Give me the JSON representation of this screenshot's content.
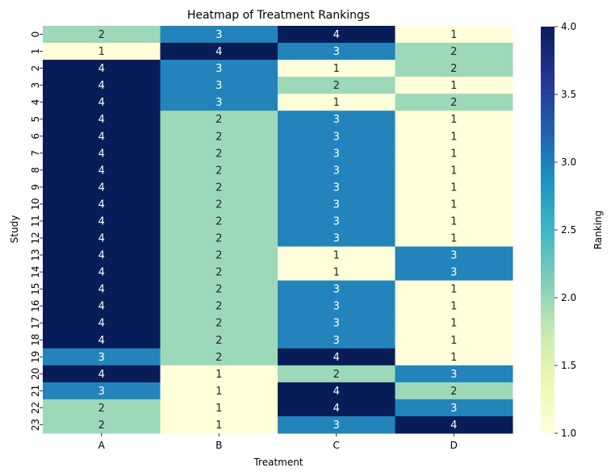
{
  "chart_data": {
    "type": "heatmap",
    "title": "Heatmap of Treatment Rankings",
    "xlabel": "Treatment",
    "ylabel": "Study",
    "x_categories": [
      "A",
      "B",
      "C",
      "D"
    ],
    "y_categories": [
      "0",
      "1",
      "2",
      "3",
      "4",
      "5",
      "6",
      "7",
      "8",
      "9",
      "10",
      "11",
      "12",
      "13",
      "14",
      "15",
      "16",
      "17",
      "18",
      "19",
      "20",
      "21",
      "22",
      "23"
    ],
    "values": [
      [
        2,
        3,
        4,
        1
      ],
      [
        1,
        4,
        3,
        2
      ],
      [
        4,
        3,
        1,
        2
      ],
      [
        4,
        3,
        2,
        1
      ],
      [
        4,
        3,
        1,
        2
      ],
      [
        4,
        2,
        3,
        1
      ],
      [
        4,
        2,
        3,
        1
      ],
      [
        4,
        2,
        3,
        1
      ],
      [
        4,
        2,
        3,
        1
      ],
      [
        4,
        2,
        3,
        1
      ],
      [
        4,
        2,
        3,
        1
      ],
      [
        4,
        2,
        3,
        1
      ],
      [
        4,
        2,
        3,
        1
      ],
      [
        4,
        2,
        1,
        3
      ],
      [
        4,
        2,
        1,
        3
      ],
      [
        4,
        2,
        3,
        1
      ],
      [
        4,
        2,
        3,
        1
      ],
      [
        4,
        2,
        3,
        1
      ],
      [
        4,
        2,
        3,
        1
      ],
      [
        3,
        2,
        4,
        1
      ],
      [
        4,
        1,
        2,
        3
      ],
      [
        3,
        1,
        4,
        2
      ],
      [
        2,
        1,
        4,
        3
      ],
      [
        2,
        1,
        3,
        4
      ]
    ],
    "annotations": true,
    "colormap": "YlGnBu",
    "colorbar": {
      "label": "Ranking",
      "range": [
        1.0,
        4.0
      ],
      "ticks": [
        "1.0",
        "1.5",
        "2.0",
        "2.5",
        "3.0",
        "3.5",
        "4.0"
      ]
    },
    "colors": {
      "1": "#ffffd9",
      "2": "#9dd8b9",
      "3": "#2284bb",
      "4": "#081d58"
    }
  }
}
